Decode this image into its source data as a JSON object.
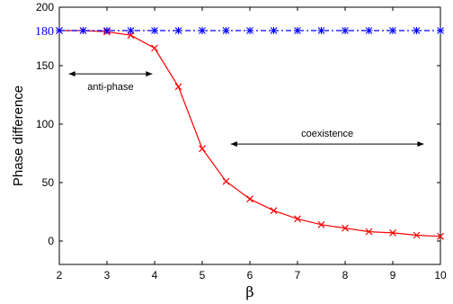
{
  "chart_data": {
    "type": "line",
    "xlabel": "β",
    "ylabel": "Phase difference",
    "xlim": [
      2,
      10
    ],
    "ylim": [
      -20,
      200
    ],
    "xticks": [
      2,
      3,
      4,
      5,
      6,
      7,
      8,
      9,
      10
    ],
    "yticks": [
      0,
      50,
      100,
      150,
      200
    ],
    "grid": false,
    "legend": "none",
    "series": [
      {
        "color": "#ff0000",
        "marker": "x",
        "linestyle": "solid",
        "x": [
          2,
          2.5,
          3,
          3.5,
          4,
          4.5,
          5,
          5.5,
          6,
          6.5,
          7,
          7.5,
          8,
          8.5,
          9,
          9.5,
          10
        ],
        "y": [
          180,
          180,
          179,
          176,
          165,
          132,
          79,
          51,
          36,
          26,
          19,
          14,
          11,
          8,
          7,
          5,
          4
        ]
      },
      {
        "color": "#0000ff",
        "marker": "*",
        "linestyle": "dashdot",
        "x": [
          2,
          2.5,
          3,
          3.5,
          4,
          4.5,
          5,
          5.5,
          6,
          6.5,
          7,
          7.5,
          8,
          8.5,
          9,
          9.5,
          10
        ],
        "y": [
          180,
          180,
          180,
          180,
          180,
          180,
          180,
          180,
          180,
          180,
          180,
          180,
          180,
          180,
          180,
          180,
          180
        ]
      }
    ],
    "reference_label": {
      "text": "180",
      "y": 180,
      "color": "#0000ff"
    },
    "annotations": [
      {
        "text": "anti-phase",
        "arrow_x": [
          2.2,
          3.95
        ],
        "y": 143
      },
      {
        "text": "coexistence",
        "arrow_x": [
          5.6,
          9.65
        ],
        "y": 83
      }
    ]
  }
}
